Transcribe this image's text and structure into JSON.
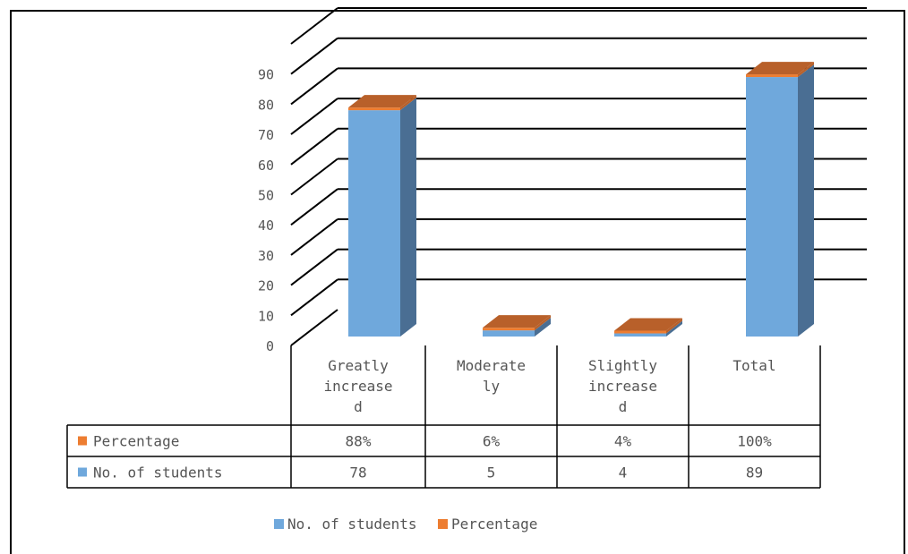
{
  "chart_data": {
    "type": "bar",
    "categories": [
      "Greatly increased",
      "Moderately",
      "Slightly increased",
      "Total"
    ],
    "category_lines": [
      [
        "Greatly",
        "increase",
        "d"
      ],
      [
        "Moderate",
        "ly"
      ],
      [
        "Slightly",
        "increase",
        "d"
      ],
      [
        "Total"
      ]
    ],
    "series": [
      {
        "name": "No. of students",
        "values": [
          78,
          5,
          4,
          89
        ],
        "color": "#6fa8dc",
        "side_color": "#4a6e93"
      },
      {
        "name": "Percentage",
        "values": [
          0.88,
          0.06,
          0.04,
          1.0
        ],
        "color": "#ed7d31",
        "side_color": "#b8602a"
      }
    ],
    "table_rows": [
      {
        "label": "Percentage",
        "color": "#ed7d31",
        "cells": [
          "88%",
          "6%",
          "4%",
          "100%"
        ]
      },
      {
        "label": "No. of students",
        "color": "#6fa8dc",
        "cells": [
          "78",
          "5",
          "4",
          "89"
        ]
      }
    ],
    "y_ticks": [
      "0",
      "10",
      "20",
      "30",
      "40",
      "50",
      "60",
      "70",
      "80",
      "90"
    ],
    "ylim": [
      0,
      100
    ],
    "grid": true,
    "legend": {
      "position": "bottom",
      "items": [
        {
          "label": "No. of students",
          "color": "#6fa8dc"
        },
        {
          "label": "Percentage",
          "color": "#ed7d31"
        }
      ]
    }
  }
}
